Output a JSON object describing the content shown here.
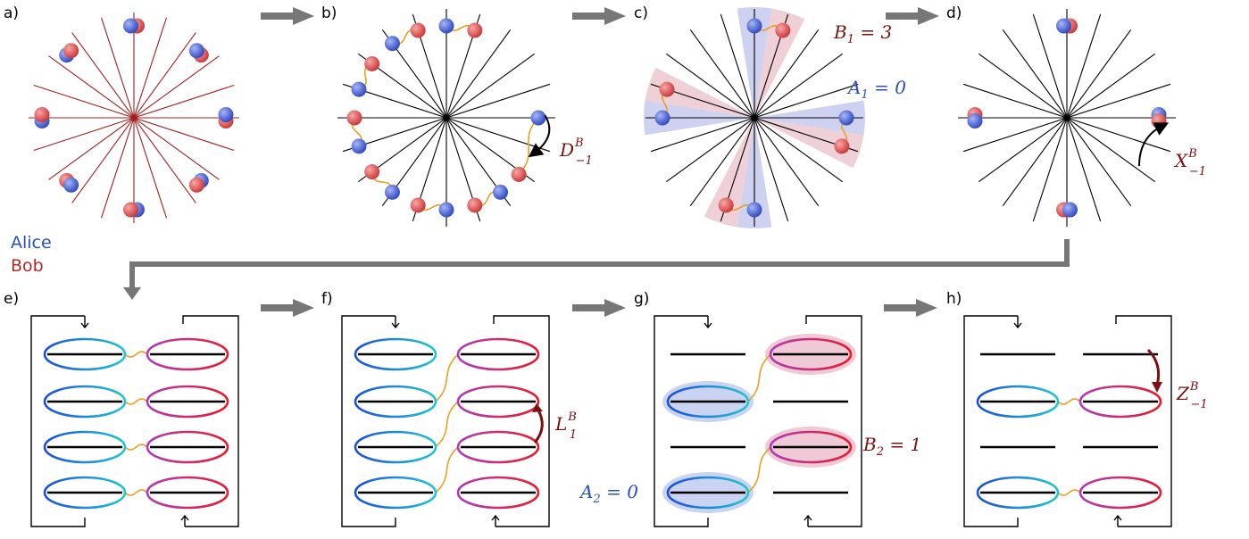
{
  "panels": {
    "a": {
      "label": "a)"
    },
    "b": {
      "label": "b)",
      "op": {
        "base": "D",
        "sup": "B",
        "sub": "−1"
      }
    },
    "c": {
      "label": "c)",
      "bob_eq": {
        "var": "B",
        "sub": "1",
        "rest": " = 3"
      },
      "alice_eq": {
        "var": "A",
        "sub": "1",
        "rest": " = 0"
      }
    },
    "d": {
      "label": "d)",
      "op": {
        "base": "X",
        "sup": "B",
        "sub": "−1"
      }
    },
    "e": {
      "label": "e)"
    },
    "f": {
      "label": "f)",
      "op": {
        "base": "L",
        "sup": "B",
        "sub": "1"
      }
    },
    "g": {
      "label": "g)",
      "bob_eq": {
        "var": "B",
        "sub": "2",
        "rest": " = 1"
      },
      "alice_eq": {
        "var": "A",
        "sub": "2",
        "rest": " = 0"
      }
    },
    "h": {
      "label": "h)",
      "op": {
        "base": "Z",
        "sup": "B",
        "sub": "−1"
      }
    }
  },
  "legend": {
    "alice": "Alice",
    "bob": "Bob"
  },
  "colors": {
    "alice": "#2a4fbf",
    "bob": "#b02a2a",
    "dark_red": "#7a1010",
    "link": "#e8a020",
    "arrow_gray": "#777777",
    "sector_blue": "#c5c9ec",
    "sector_pink": "#ecc8d0"
  },
  "icons": [
    "flow-arrow-icon",
    "curved-arrow-icon",
    "wavy-link-icon",
    "qudit-sphere-icon"
  ]
}
